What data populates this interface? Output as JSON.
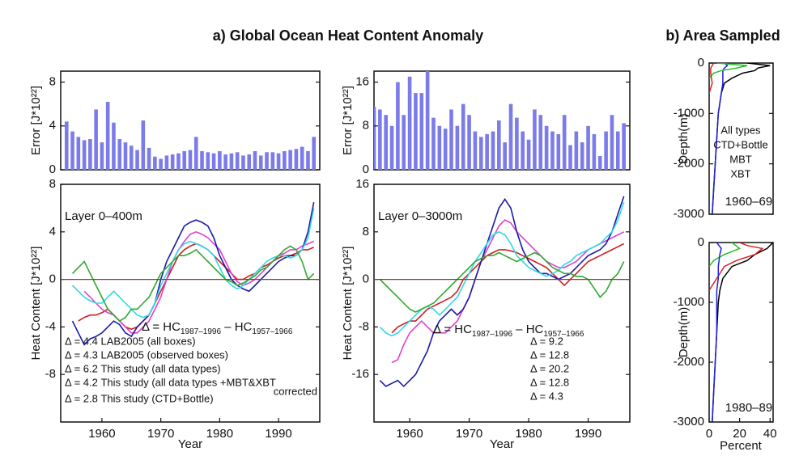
{
  "chart_data": [
    {
      "type": "bar",
      "title": "a)  Global Ocean Heat Content Anomaly",
      "y_label": "Error [J*10²²]",
      "x": [
        1954,
        1955,
        1956,
        1957,
        1958,
        1959,
        1960,
        1961,
        1962,
        1963,
        1964,
        1965,
        1966,
        1967,
        1968,
        1969,
        1970,
        1971,
        1972,
        1973,
        1974,
        1975,
        1976,
        1977,
        1978,
        1979,
        1980,
        1981,
        1982,
        1983,
        1984,
        1985,
        1986,
        1987,
        1988,
        1989,
        1990,
        1991,
        1992,
        1993,
        1994,
        1995,
        1996
      ],
      "values": [
        4.4,
        3.5,
        3,
        2.7,
        2.8,
        5.5,
        2.5,
        6.2,
        4.3,
        2.8,
        2.5,
        2.2,
        1.8,
        4.5,
        2,
        1.2,
        1,
        1.3,
        1.4,
        1.5,
        1.7,
        1.8,
        3,
        1.7,
        1.6,
        1.5,
        1.7,
        1.4,
        1.5,
        1.6,
        1.3,
        1.4,
        1.7,
        1.3,
        1.6,
        1.6,
        1.5,
        1.7,
        1.8,
        1.9,
        2.1,
        1.7,
        3
      ],
      "color": "#7b7bea",
      "xlim": [
        1953,
        1997
      ],
      "ylim": [
        0,
        9
      ],
      "yticks": [
        0,
        4,
        8
      ]
    },
    {
      "type": "line",
      "y_label": "Heat Content [J*10²²]",
      "x_label": "Year",
      "annotation": "Layer 0–400m",
      "formula": [
        "Δ = HC",
        "1987–1996",
        "  –  HC",
        "1957–1966"
      ],
      "x": [
        1955,
        1956,
        1957,
        1958,
        1959,
        1960,
        1961,
        1962,
        1963,
        1964,
        1965,
        1966,
        1967,
        1968,
        1969,
        1970,
        1971,
        1972,
        1973,
        1974,
        1975,
        1976,
        1977,
        1978,
        1979,
        1980,
        1981,
        1982,
        1983,
        1984,
        1985,
        1986,
        1987,
        1988,
        1989,
        1990,
        1991,
        1992,
        1993,
        1994,
        1995,
        1996
      ],
      "series": [
        {
          "name": "Δ =  4.4 LAB2005 (all boxes)",
          "color": "#cc2020",
          "values": [
            null,
            -3.5,
            -3.2,
            -3,
            -3,
            -2.8,
            -2.5,
            -3,
            -3.5,
            -4,
            -4.2,
            -4,
            -3.5,
            -3,
            -2,
            -1,
            0,
            1,
            2,
            2.5,
            2.8,
            3,
            2.8,
            2.5,
            2,
            1.5,
            1,
            0.5,
            0,
            0,
            0.3,
            0.5,
            1,
            1.2,
            1.5,
            1.8,
            2,
            2,
            2.2,
            2.5,
            2.5,
            2.7
          ]
        },
        {
          "name": "Δ =  4.3 LAB2005 (observed boxes)",
          "color": "#e040d0",
          "values": [
            null,
            null,
            -1,
            -1.5,
            -2,
            -2.5,
            -2.8,
            -3,
            -3.5,
            -4,
            -4.5,
            -4.5,
            -4,
            -3.5,
            -2.5,
            -1.5,
            0,
            1.5,
            2.5,
            3.2,
            3.8,
            4,
            3.8,
            3.5,
            3,
            2.5,
            1.5,
            0.5,
            -0.2,
            -0.5,
            -0.3,
            0,
            0.5,
            1,
            1.5,
            2,
            2.2,
            2.5,
            2.5,
            2.8,
            3,
            3.2
          ]
        },
        {
          "name": "Δ =  6.2 This study (all data types)",
          "color": "#1a1aa8",
          "values": [
            -3.5,
            -4.5,
            -5.5,
            -5,
            -4.8,
            -4.5,
            -4,
            -3.5,
            -3.8,
            -4.5,
            -4.8,
            -4,
            -3.5,
            -3,
            -2,
            0,
            1.5,
            2.5,
            3.5,
            4.5,
            4.8,
            5,
            4.8,
            4.5,
            3.5,
            2,
            1,
            0,
            -0.5,
            -0.8,
            -1,
            -0.5,
            0,
            0.5,
            1,
            1.5,
            1.8,
            2,
            2,
            2.5,
            4,
            6.5
          ]
        },
        {
          "name": "Δ =  4.2 This study (all data types +MBT&XBT",
          "note": "corrected",
          "color": "#30d8e8",
          "values": [
            -0.5,
            -1,
            -1.5,
            -1.8,
            -2,
            -2,
            -1.5,
            -1,
            -1.5,
            -2,
            -2.5,
            -3,
            -3.2,
            -3,
            -2,
            -0.5,
            0.5,
            1.5,
            2.5,
            3,
            3.2,
            3,
            2.8,
            2.5,
            2,
            1,
            0,
            -0.5,
            -0.8,
            -0.5,
            0,
            0.5,
            1,
            1.5,
            1.8,
            2,
            2,
            1.8,
            2,
            2.5,
            3.5,
            6
          ]
        },
        {
          "name": "Δ =  2.8 This study (CTD+Bottle)",
          "color": "#30a830",
          "values": [
            0.5,
            1,
            1.5,
            0.5,
            -0.5,
            -1.5,
            -2.5,
            -3,
            -3.5,
            -3.2,
            -2.5,
            -2.5,
            -2,
            -1.5,
            -0.5,
            0.5,
            1,
            1.5,
            2,
            2,
            2.2,
            2.5,
            2,
            1.5,
            1,
            0.5,
            0,
            -0.2,
            -0.5,
            -0.3,
            0,
            0.3,
            0.8,
            1,
            1.5,
            2,
            2.5,
            2.8,
            2.5,
            1.5,
            0,
            0.5
          ]
        }
      ],
      "xlim": [
        1953,
        1997
      ],
      "xticks": [
        1960,
        1970,
        1980,
        1990
      ],
      "ylim": [
        -12,
        8
      ],
      "yticks": [
        -8,
        -4,
        0,
        4,
        8
      ]
    },
    {
      "type": "bar",
      "y_label": "Error [J*10²²]",
      "x": [
        1954,
        1955,
        1956,
        1957,
        1958,
        1959,
        1960,
        1961,
        1962,
        1963,
        1964,
        1965,
        1966,
        1967,
        1968,
        1969,
        1970,
        1971,
        1972,
        1973,
        1974,
        1975,
        1976,
        1977,
        1978,
        1979,
        1980,
        1981,
        1982,
        1983,
        1984,
        1985,
        1986,
        1987,
        1988,
        1989,
        1990,
        1991,
        1992,
        1993,
        1994,
        1995,
        1996
      ],
      "values": [
        11.5,
        11,
        10,
        8,
        16,
        10,
        17,
        14,
        14,
        18,
        9.5,
        8,
        7.5,
        11,
        8,
        12,
        10,
        7,
        6,
        6.5,
        7,
        9,
        5,
        12,
        9.5,
        7,
        5.5,
        11,
        10,
        8,
        7,
        6.5,
        10,
        4.5,
        7,
        5,
        8,
        6.5,
        2.5,
        7,
        10,
        7,
        8.5
      ],
      "color": "#7b7bea",
      "xlim": [
        1954,
        1997
      ],
      "ylim": [
        0,
        18
      ],
      "yticks": [
        0,
        8,
        16
      ]
    },
    {
      "type": "line",
      "y_label": "Heat Content [J*10²²]",
      "x_label": "Year",
      "annotation": "Layer 0–3000m",
      "formula": [
        "Δ = HC",
        "1987–1996",
        "  –  HC",
        "1957–1966"
      ],
      "x": [
        1955,
        1956,
        1957,
        1958,
        1959,
        1960,
        1961,
        1962,
        1963,
        1964,
        1965,
        1966,
        1967,
        1968,
        1969,
        1970,
        1971,
        1972,
        1973,
        1974,
        1975,
        1976,
        1977,
        1978,
        1979,
        1980,
        1981,
        1982,
        1983,
        1984,
        1985,
        1986,
        1987,
        1988,
        1989,
        1990,
        1991,
        1992,
        1993,
        1994,
        1995,
        1996
      ],
      "series": [
        {
          "name": "Δ =  9.2",
          "color": "#cc2020",
          "values": [
            null,
            null,
            -9,
            -8,
            -7.5,
            -7,
            -7,
            -6,
            -5,
            -4.5,
            -4,
            -3.5,
            -3,
            -2,
            0,
            1,
            2,
            3,
            4,
            4.5,
            5,
            5,
            4.8,
            4.5,
            4,
            3.5,
            3,
            2.5,
            2,
            1,
            0,
            -1,
            0,
            1,
            2,
            3,
            3.5,
            4,
            4.5,
            5,
            5.5,
            6
          ]
        },
        {
          "name": "Δ = 12.8",
          "color": "#e040d0",
          "values": [
            null,
            null,
            -14,
            -13.5,
            -11,
            -9,
            -8,
            -7,
            -8,
            -9,
            -9,
            -9,
            -8,
            -7,
            -5,
            -3,
            0,
            3,
            5,
            7,
            9,
            10,
            9.5,
            8,
            7,
            6,
            5,
            4,
            3,
            2.5,
            2,
            2,
            2.5,
            3,
            4,
            5,
            5.5,
            6,
            6.5,
            7,
            7.5,
            8
          ]
        },
        {
          "name": "Δ = 20.2",
          "color": "#1a1aa8",
          "values": [
            -17,
            -18,
            -17.5,
            -17,
            -18,
            -17,
            -16,
            -14,
            -12,
            -9,
            -7,
            -6,
            -5,
            -6,
            -5,
            -3,
            0,
            3,
            6,
            9,
            12,
            13.5,
            12,
            8,
            5,
            3,
            2,
            1,
            1,
            0.5,
            0,
            0.5,
            1,
            2,
            3,
            4,
            4.5,
            5,
            6,
            8,
            11,
            14
          ]
        },
        {
          "name": "Δ = 12.8",
          "color": "#30d8e8",
          "values": [
            -8,
            -9,
            -9.5,
            -9,
            -8,
            -7,
            -6,
            -5,
            -4.5,
            -5,
            -6,
            -5,
            -4,
            -3,
            -1,
            1,
            3,
            4.5,
            6,
            7.5,
            8,
            7.5,
            6,
            4,
            3,
            2,
            1.5,
            1,
            0.5,
            1,
            1.5,
            2.5,
            3,
            4,
            4.5,
            5,
            5.5,
            6,
            7,
            8,
            10,
            13
          ]
        },
        {
          "name": "Δ =   4.3",
          "color": "#30a830",
          "values": [
            0,
            -1,
            -2,
            -3,
            -4,
            -5,
            -5.5,
            -5,
            -4.5,
            -4,
            -3,
            -2,
            -1,
            0,
            1,
            2,
            3,
            3.5,
            4,
            4,
            4.5,
            4,
            3.5,
            3,
            3.5,
            4,
            4.5,
            4,
            3,
            2,
            1.5,
            1,
            1,
            0.5,
            0.5,
            0,
            -1.5,
            -3,
            -2,
            0,
            1,
            3
          ]
        }
      ],
      "xlim": [
        1954,
        1997
      ],
      "xticks": [
        1960,
        1970,
        1980,
        1990
      ],
      "ylim": [
        -24,
        16
      ],
      "yticks": [
        -16,
        -8,
        0,
        8,
        16
      ]
    },
    {
      "type": "profile",
      "title": "b)  Area Sampled",
      "y_label": "Depth(m)",
      "annotation": "1960–69",
      "series": [
        {
          "name": "All types",
          "color": "#000000",
          "x": [
            25,
            40,
            32,
            30,
            22,
            15,
            10,
            8,
            7,
            6,
            5,
            4,
            3,
            2
          ],
          "values": [
            0,
            -50,
            -100,
            -150,
            -200,
            -300,
            -400,
            -600,
            -800,
            -1000,
            -1500,
            -2000,
            -2500,
            -3000
          ]
        },
        {
          "name": "CTD+Bottle",
          "color": "#2020e0",
          "x": [
            10,
            12,
            10,
            9,
            9,
            9,
            9,
            8,
            7,
            6,
            5,
            4,
            3,
            2
          ],
          "values": [
            0,
            -50,
            -100,
            -150,
            -200,
            -300,
            -400,
            -600,
            -800,
            -1000,
            -1500,
            -2000,
            -2500,
            -3000
          ]
        },
        {
          "name": "MBT",
          "color": "#20c020",
          "x": [
            5,
            25,
            18,
            8,
            3,
            0
          ],
          "values": [
            0,
            -50,
            -100,
            -150,
            -200,
            -300
          ]
        },
        {
          "name": "XBT",
          "color": "#e02020",
          "x": [
            3,
            2,
            1,
            1,
            2,
            0
          ],
          "values": [
            0,
            -50,
            -100,
            -200,
            -400,
            -600
          ]
        }
      ],
      "xlim": [
        0,
        42
      ],
      "ylim": [
        -3000,
        0
      ],
      "yticks": [
        0,
        -1000,
        -2000,
        -3000
      ]
    },
    {
      "type": "profile",
      "y_label": "Depth(m)",
      "x_label": "Percent",
      "annotation": "1980–89",
      "series": [
        {
          "color": "#000000",
          "x": [
            42,
            40,
            38,
            30,
            25,
            15,
            9,
            7,
            6,
            5,
            4,
            3,
            2
          ],
          "values": [
            0,
            -50,
            -100,
            -200,
            -300,
            -400,
            -600,
            -800,
            -1000,
            -1500,
            -2000,
            -2500,
            -3000
          ]
        },
        {
          "color": "#e02020",
          "x": [
            20,
            25,
            35,
            30,
            18,
            10,
            5,
            0
          ],
          "values": [
            0,
            -50,
            -100,
            -200,
            -300,
            -400,
            -600,
            -800
          ]
        },
        {
          "color": "#20c020",
          "x": [
            15,
            20,
            10,
            3,
            0
          ],
          "values": [
            0,
            -100,
            -200,
            -300,
            -400
          ]
        },
        {
          "color": "#2020e0",
          "x": [
            5,
            8,
            7,
            6,
            6,
            5,
            5,
            5,
            4,
            3,
            2
          ],
          "values": [
            0,
            -100,
            -200,
            -400,
            -600,
            -800,
            -1000,
            -1500,
            -2000,
            -2500,
            -3000
          ]
        }
      ],
      "xlim": [
        0,
        42
      ],
      "xticks": [
        0,
        20,
        40
      ],
      "ylim": [
        -3000,
        0
      ],
      "yticks": [
        0,
        -1000,
        -2000,
        -3000
      ]
    }
  ]
}
